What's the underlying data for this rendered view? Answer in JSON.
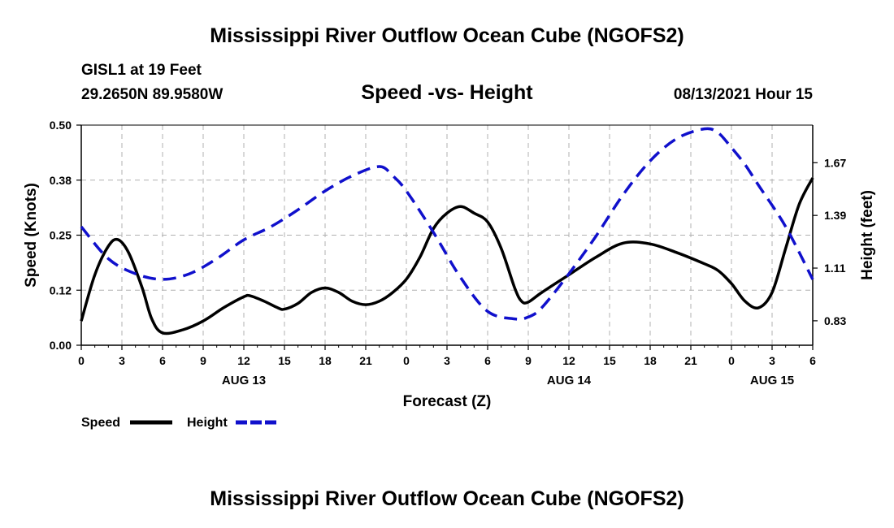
{
  "header": {
    "title": "Mississippi River Outflow Ocean Cube (NGOFS2)",
    "station": "GISL1 at 19 Feet",
    "coords": "29.2650N  89.9580W",
    "datetime": "08/13/2021 Hour 15"
  },
  "footer": {
    "title": "Mississippi River Outflow Ocean Cube (NGOFS2)"
  },
  "chart_data": {
    "type": "line",
    "title": "Speed -vs- Height",
    "xlabel": "Forecast (Z)",
    "ylabel": "Speed (Knots)",
    "y2label": "Height (feet)",
    "x_range": [
      0,
      54
    ],
    "ylim": [
      0,
      0.5
    ],
    "y2lim": [
      0.7,
      1.87
    ],
    "x_ticks": [
      0,
      3,
      6,
      9,
      12,
      15,
      18,
      21,
      24,
      27,
      30,
      33,
      36,
      39,
      42,
      45,
      48,
      51,
      54
    ],
    "x_tick_labels": [
      "0",
      "3",
      "6",
      "9",
      "12",
      "15",
      "18",
      "21",
      "0",
      "3",
      "6",
      "9",
      "12",
      "15",
      "18",
      "21",
      "0",
      "3",
      "6"
    ],
    "x_date_labels": [
      {
        "x": 12,
        "label": "AUG 13"
      },
      {
        "x": 36,
        "label": "AUG 14"
      },
      {
        "x": 51,
        "label": "AUG 15"
      }
    ],
    "y_ticks": [
      0.0,
      0.125,
      0.25,
      0.375,
      0.5
    ],
    "y_tick_labels": [
      "0.00",
      "0.12",
      "0.25",
      "0.38",
      "0.50"
    ],
    "y2_ticks": [
      0.83,
      1.11,
      1.39,
      1.67
    ],
    "y2_tick_labels": [
      "0.83",
      "1.11",
      "1.39",
      "1.67"
    ],
    "grid": true,
    "legend": [
      {
        "name": "Speed",
        "color": "#000000",
        "dash": "solid"
      },
      {
        "name": "Height",
        "color": "#1010cc",
        "dash": "dashed"
      }
    ],
    "series": [
      {
        "name": "Speed",
        "axis": "left",
        "color": "#000000",
        "x": [
          0,
          1,
          2,
          2.7,
          3.5,
          4.5,
          5.2,
          6,
          7.5,
          9,
          10.5,
          12,
          12.5,
          13.5,
          14.5,
          15,
          16,
          17,
          18,
          19,
          20,
          21,
          22,
          23,
          24,
          25,
          26,
          27,
          28,
          29,
          30,
          31,
          32,
          32.5,
          33,
          34,
          36,
          38,
          40,
          42,
          44,
          46,
          47,
          48,
          49,
          50,
          51,
          52,
          53,
          54
        ],
        "y": [
          0.055,
          0.16,
          0.225,
          0.24,
          0.21,
          0.13,
          0.06,
          0.028,
          0.035,
          0.055,
          0.085,
          0.11,
          0.112,
          0.1,
          0.085,
          0.082,
          0.095,
          0.12,
          0.13,
          0.12,
          0.1,
          0.092,
          0.1,
          0.12,
          0.15,
          0.2,
          0.265,
          0.3,
          0.315,
          0.3,
          0.28,
          0.22,
          0.13,
          0.1,
          0.098,
          0.12,
          0.16,
          0.2,
          0.232,
          0.23,
          0.21,
          0.185,
          0.17,
          0.14,
          0.1,
          0.085,
          0.12,
          0.22,
          0.32,
          0.38
        ]
      },
      {
        "name": "Height",
        "axis": "right",
        "color": "#1010cc",
        "x": [
          0,
          2,
          4,
          6,
          8,
          10,
          12,
          14,
          16,
          18,
          20,
          22,
          23,
          24,
          26,
          28,
          30,
          32,
          33,
          34,
          36,
          38,
          40,
          42,
          44,
          46,
          47,
          48,
          49,
          50,
          52,
          54
        ],
        "y": [
          1.33,
          1.16,
          1.08,
          1.05,
          1.08,
          1.16,
          1.26,
          1.33,
          1.42,
          1.52,
          1.6,
          1.65,
          1.6,
          1.52,
          1.3,
          1.06,
          0.88,
          0.84,
          0.85,
          0.9,
          1.08,
          1.28,
          1.5,
          1.68,
          1.8,
          1.85,
          1.83,
          1.75,
          1.66,
          1.55,
          1.33,
          1.05
        ]
      }
    ]
  }
}
